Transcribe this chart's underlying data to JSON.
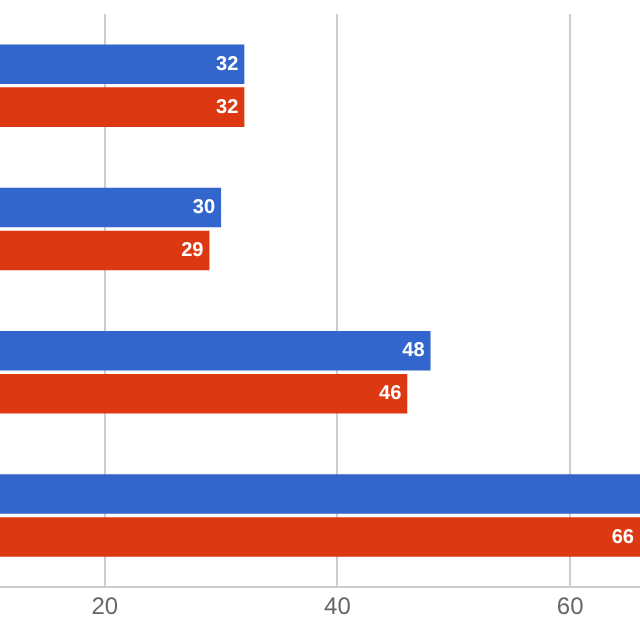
{
  "chart_data": {
    "type": "bar",
    "orientation": "horizontal",
    "categories": [
      null,
      null,
      null,
      null
    ],
    "series": [
      {
        "color": "#3366cc",
        "values": [
          32,
          30,
          48,
          66
        ],
        "value_labels": [
          "32",
          "30",
          "48",
          null
        ]
      },
      {
        "color": "#dc3912",
        "values": [
          32,
          29,
          46,
          66
        ],
        "value_labels": [
          "32",
          "29",
          "46",
          "66"
        ]
      }
    ],
    "xlim": [
      11,
      66
    ],
    "xticks": [
      20,
      40,
      60
    ],
    "grid": "x",
    "legend": false
  }
}
